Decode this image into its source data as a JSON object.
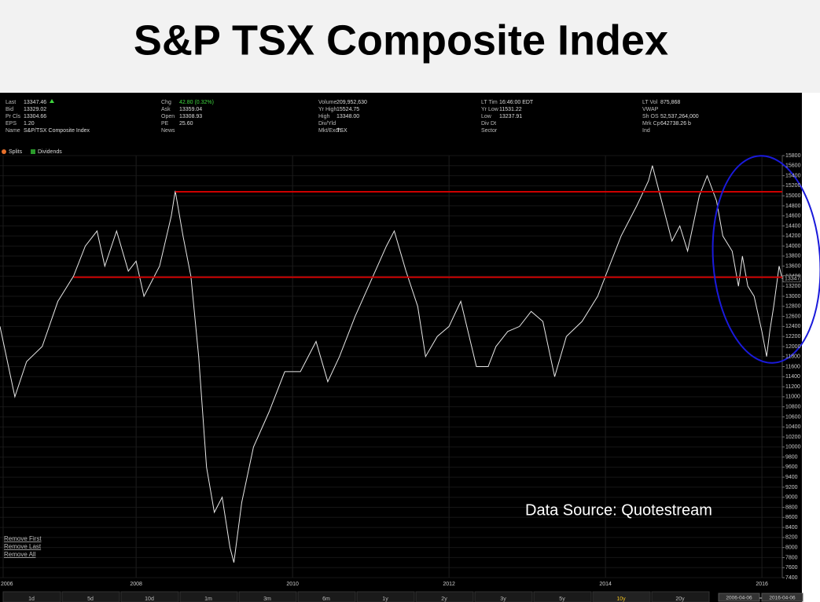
{
  "chart_data": {
    "type": "line",
    "title": "S&P TSX Composite Index",
    "annotation": "Data Source: Quotestream",
    "quote": [
      [
        {
          "label": "Last",
          "value": "13347.46"
        },
        {
          "label": "Bid",
          "value": "13329.02"
        },
        {
          "label": "Pr Cls",
          "value": "13304.66"
        },
        {
          "label": "EPS",
          "value": "1.20"
        },
        {
          "label": "Name",
          "value": "S&P/TSX Composite Index"
        }
      ],
      [
        {
          "label": "Chg",
          "value": "42.80 (0.32%)"
        },
        {
          "label": "Ask",
          "value": "13359.04"
        },
        {
          "label": "Open",
          "value": "13308.93"
        },
        {
          "label": "PE",
          "value": "25.60"
        },
        {
          "label": "News"
        }
      ],
      [
        {
          "label": "Volume",
          "value": "209,952,630"
        },
        {
          "label": "Yr High",
          "value": "15524.75"
        },
        {
          "label": "High",
          "value": "13348.00"
        },
        {
          "label": "Div/Yld"
        },
        {
          "label": "Mkt/Exch",
          "value": "TSX"
        }
      ],
      [
        {
          "label": "LT Tim",
          "value": "16:46:00 EDT"
        },
        {
          "label": "Yr Low",
          "value": "11531.22"
        },
        {
          "label": "Low",
          "value": "13237.91"
        },
        {
          "label": "Div Dt"
        },
        {
          "label": "Sector"
        }
      ],
      [
        {
          "label": "LT Vol",
          "value": "875,868"
        },
        {
          "label": "VWAP"
        },
        {
          "label": "Sh OS",
          "value": "52,537,264,000"
        },
        {
          "label": "Mrk Cp",
          "value": "642738.26 b"
        },
        {
          "label": "Ind"
        }
      ]
    ],
    "legend": [
      "Splits",
      "Dividends"
    ],
    "links": [
      "Remove First",
      "Remove Last",
      "Remove All"
    ],
    "range_buttons": [
      "1d",
      "5d",
      "10d",
      "1m",
      "3m",
      "6m",
      "1y",
      "2y",
      "3y",
      "5y",
      "10y",
      "20y"
    ],
    "active_range": "10y",
    "date_from": "2006-04-06",
    "date_to": "2016-04-06",
    "color": "#e8e8e8",
    "x": [
      2006.26,
      2006.45,
      2006.6,
      2006.8,
      2007.0,
      2007.2,
      2007.35,
      2007.5,
      2007.6,
      2007.75,
      2007.9,
      2008.0,
      2008.1,
      2008.3,
      2008.45,
      2008.5,
      2008.6,
      2008.7,
      2008.8,
      2008.9,
      2009.0,
      2009.1,
      2009.2,
      2009.25,
      2009.35,
      2009.5,
      2009.7,
      2009.9,
      2010.1,
      2010.3,
      2010.45,
      2010.6,
      2010.8,
      2011.0,
      2011.2,
      2011.3,
      2011.45,
      2011.6,
      2011.7,
      2011.85,
      2012.0,
      2012.15,
      2012.35,
      2012.5,
      2012.6,
      2012.75,
      2012.9,
      2013.05,
      2013.2,
      2013.35,
      2013.5,
      2013.7,
      2013.9,
      2014.0,
      2014.2,
      2014.4,
      2014.55,
      2014.6,
      2014.7,
      2014.85,
      2014.95,
      2015.05,
      2015.2,
      2015.3,
      2015.42,
      2015.5,
      2015.62,
      2015.7,
      2015.75,
      2015.82,
      2015.9,
      2016.0,
      2016.06,
      2016.1,
      2016.15,
      2016.22,
      2016.26
    ],
    "values": [
      12400,
      11000,
      11700,
      12000,
      12900,
      13400,
      14000,
      14300,
      13600,
      14300,
      13500,
      13700,
      13000,
      13600,
      14600,
      15100,
      14200,
      13400,
      11800,
      9600,
      8700,
      9000,
      8000,
      7700,
      8900,
      10000,
      10700,
      11500,
      11500,
      12100,
      11300,
      11800,
      12600,
      13300,
      14000,
      14300,
      13500,
      12800,
      11800,
      12200,
      12400,
      12900,
      11600,
      11600,
      12000,
      12300,
      12400,
      12700,
      12500,
      11400,
      12200,
      12500,
      13000,
      13400,
      14200,
      14800,
      15300,
      15600,
      15000,
      14100,
      14400,
      13900,
      15000,
      15400,
      14900,
      14200,
      13900,
      13200,
      13800,
      13200,
      13000,
      12300,
      11800,
      12300,
      12800,
      13600,
      13347
    ],
    "price_tag": 13347,
    "reference_lines": [
      {
        "value": 15080,
        "x_start": 2008.5,
        "color": "#cc0000"
      },
      {
        "value": 13380,
        "x_start": 2007.2,
        "color": "#cc0000"
      }
    ],
    "xlim": [
      2006.26,
      2016.26
    ],
    "xticks": [
      {
        "value": 2006.3,
        "label": "2006"
      },
      2008,
      2010,
      2012,
      2014,
      2016
    ],
    "ylim": [
      7400,
      15800
    ],
    "yticks": [
      7400,
      7600,
      7800,
      8000,
      8200,
      8400,
      8600,
      8800,
      9000,
      9200,
      9400,
      9600,
      9800,
      10000,
      10200,
      10400,
      10600,
      10800,
      11000,
      11200,
      11400,
      11600,
      11800,
      12000,
      12200,
      12400,
      12600,
      12800,
      13000,
      13200,
      13400,
      13600,
      13800,
      14000,
      14200,
      14400,
      14600,
      14800,
      15000,
      15200,
      15400,
      15600,
      15800
    ],
    "grid": true
  }
}
